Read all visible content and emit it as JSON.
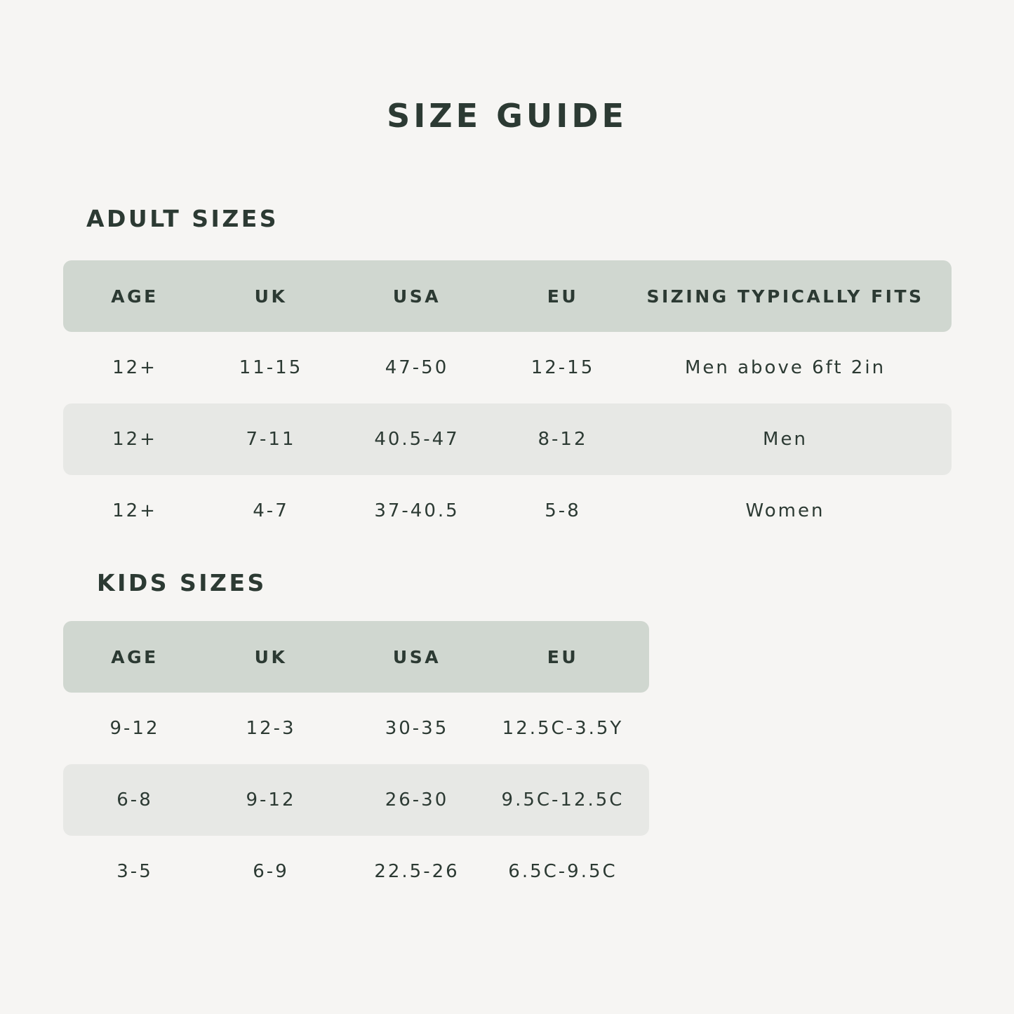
{
  "title": "SIZE GUIDE",
  "colors": {
    "background": "#f6f5f3",
    "header_row": "#d0d7d0",
    "alt_row": "#e7e8e5",
    "text": "#2c3a33"
  },
  "adult": {
    "heading": "ADULT SIZES",
    "columns": [
      "AGE",
      "UK",
      "USA",
      "EU",
      "SIZING TYPICALLY FITS"
    ],
    "rows": [
      [
        "12+",
        "11-15",
        "47-50",
        "12-15",
        "Men above 6ft 2in"
      ],
      [
        "12+",
        "7-11",
        "40.5-47",
        "8-12",
        "Men"
      ],
      [
        "12+",
        "4-7",
        "37-40.5",
        "5-8",
        "Women"
      ]
    ]
  },
  "kids": {
    "heading": "KIDS SIZES",
    "columns": [
      "AGE",
      "UK",
      "USA",
      "EU"
    ],
    "rows": [
      [
        "9-12",
        "12-3",
        "30-35",
        "12.5C-3.5Y"
      ],
      [
        "6-8",
        "9-12",
        "26-30",
        "9.5C-12.5C"
      ],
      [
        "3-5",
        "6-9",
        "22.5-26",
        "6.5C-9.5C"
      ]
    ]
  }
}
